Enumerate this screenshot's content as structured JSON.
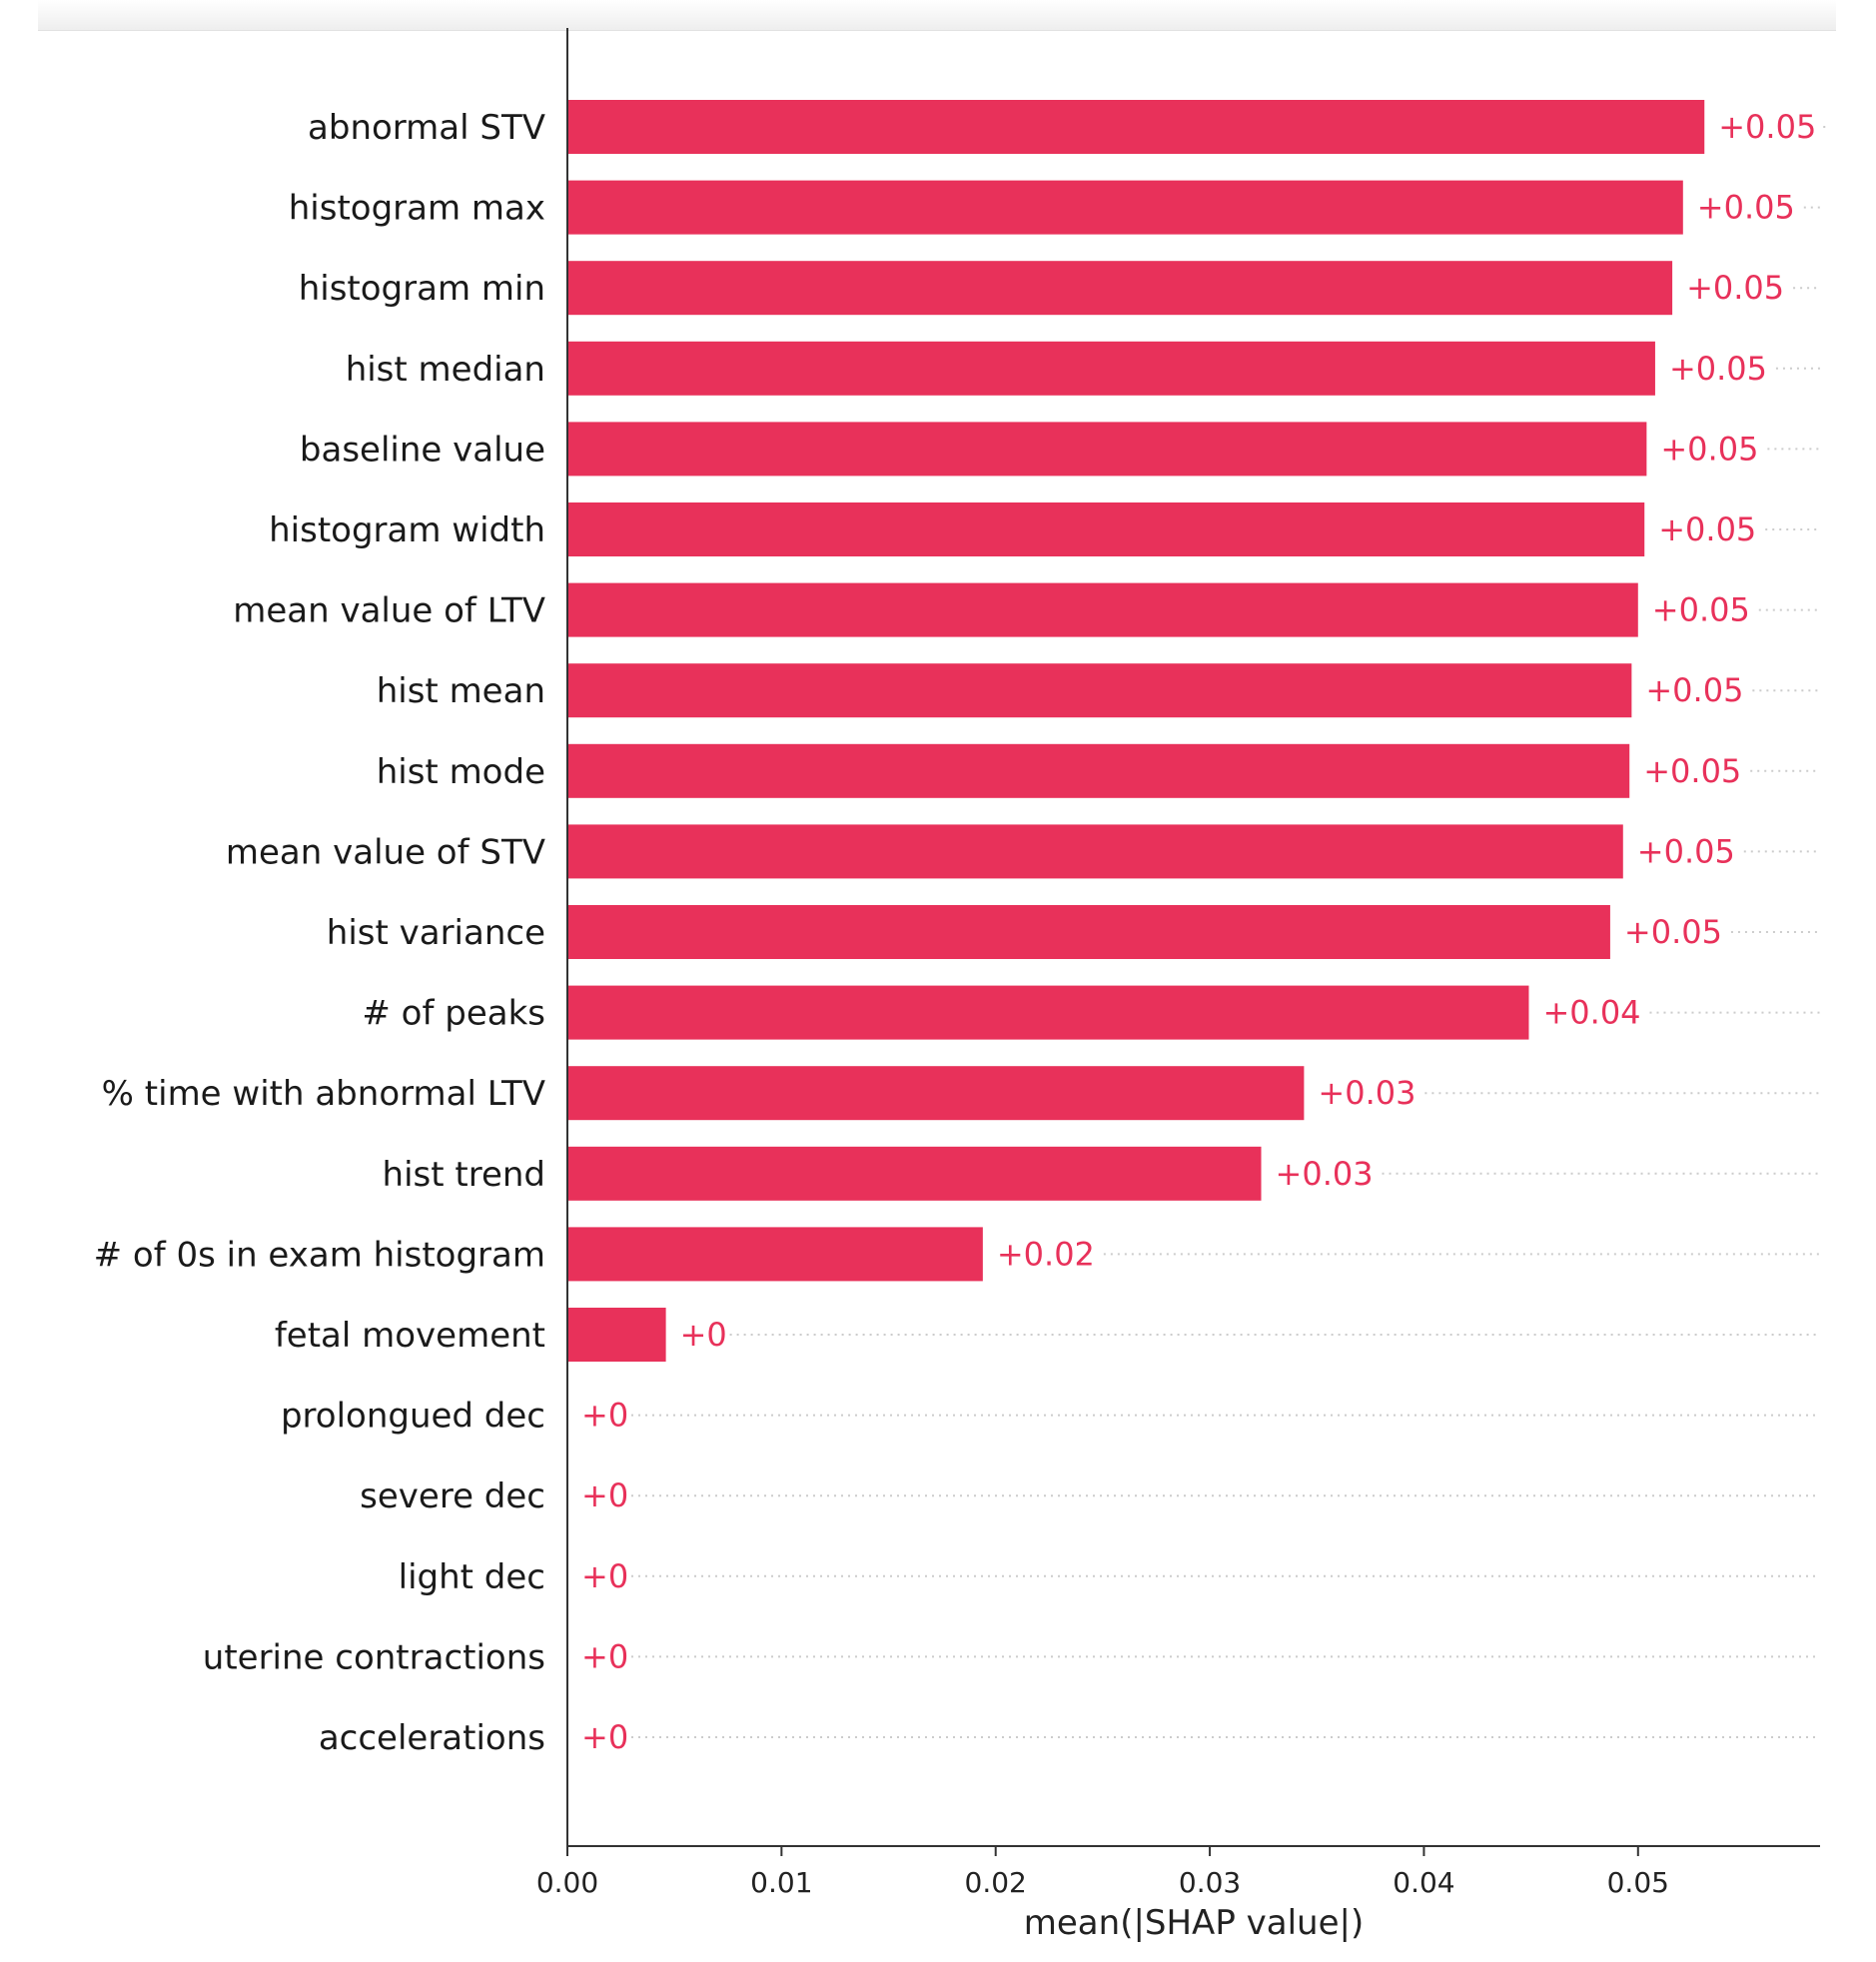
{
  "chart_data": {
    "type": "bar",
    "orientation": "horizontal",
    "title": "",
    "xlabel": "mean(|SHAP value|)",
    "ylabel": "",
    "xlim": [
      0,
      0.0585
    ],
    "x_ticks": [
      {
        "value": 0.0,
        "label": "0.00"
      },
      {
        "value": 0.01,
        "label": "0.01"
      },
      {
        "value": 0.02,
        "label": "0.02"
      },
      {
        "value": 0.03,
        "label": "0.03"
      },
      {
        "value": 0.04,
        "label": "0.04"
      },
      {
        "value": 0.05,
        "label": "0.05"
      }
    ],
    "grid": false,
    "bar_color": "#e8315a",
    "label_color": "#e8315a",
    "axis_color": "#333333",
    "categories": [
      "abnormal STV",
      "histogram max",
      "histogram min",
      "hist median",
      "baseline value",
      "histogram width",
      "mean value of LTV",
      "hist mean",
      "hist mode",
      "mean value of STV",
      "hist variance",
      "# of peaks",
      "% time with abnormal LTV",
      "hist trend",
      "# of 0s in exam histogram",
      "fetal movement",
      "prolongued dec",
      "severe dec",
      "light dec",
      "uterine contractions",
      "accelerations"
    ],
    "values": [
      0.0531,
      0.0521,
      0.0516,
      0.0508,
      0.0504,
      0.0503,
      0.05,
      0.0497,
      0.0496,
      0.0493,
      0.0487,
      0.0449,
      0.0344,
      0.0324,
      0.0194,
      0.0046,
      0.0,
      0.0,
      0.0,
      0.0,
      0.0
    ],
    "value_labels": [
      "+0.05",
      "+0.05",
      "+0.05",
      "+0.05",
      "+0.05",
      "+0.05",
      "+0.05",
      "+0.05",
      "+0.05",
      "+0.05",
      "+0.05",
      "+0.04",
      "+0.03",
      "+0.03",
      "+0.02",
      "+0",
      "+0",
      "+0",
      "+0",
      "+0",
      "+0"
    ]
  }
}
